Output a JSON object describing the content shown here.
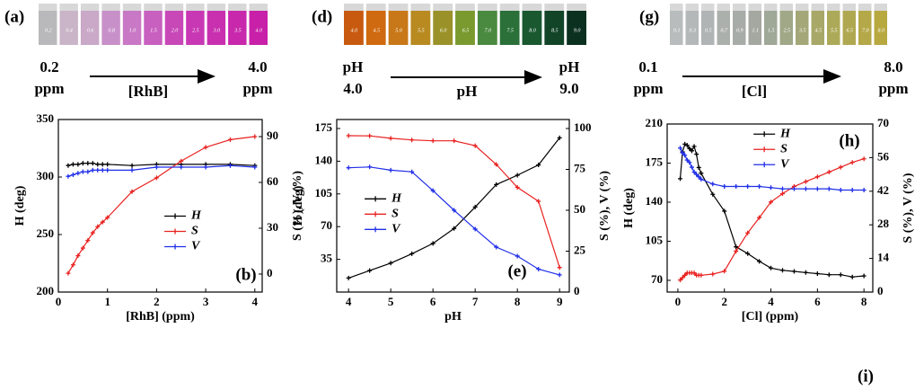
{
  "strips": [
    {
      "panel": "(a)",
      "vial_labels": [
        "0.2",
        "0.4",
        "0.6",
        "0.8",
        "1.0",
        "1.5",
        "2.0",
        "2.5",
        "3.0",
        "3.5",
        "4.0"
      ],
      "vial_colors": [
        "#b9b9bb",
        "#c9b4c8",
        "#c9a8c8",
        "#c890c8",
        "#c878c4",
        "#c860c0",
        "#c848b8",
        "#c838b4",
        "#c830b0",
        "#c828ac",
        "#c820a8"
      ],
      "start": [
        "0.2",
        "ppm"
      ],
      "axis_label": "[RhB]",
      "end": [
        "4.0",
        "ppm"
      ]
    },
    {
      "panel": "(d)",
      "vial_labels": [
        "4.0",
        "4.5",
        "5.0",
        "5.5",
        "6.0",
        "6.5",
        "7.0",
        "7.5",
        "8.0",
        "8.5",
        "9.0"
      ],
      "vial_colors": [
        "#c85a10",
        "#d06a10",
        "#c87818",
        "#b88a20",
        "#9a9228",
        "#7a9a30",
        "#4a8a40",
        "#2a7038",
        "#1a5830",
        "#124428",
        "#0c3020"
      ],
      "start": [
        "pH",
        "4.0"
      ],
      "axis_label": "pH",
      "end": [
        "pH",
        "9.0"
      ]
    },
    {
      "panel": "(g)",
      "vial_labels": [
        "0.1",
        "0.3",
        "0.5",
        "0.7",
        "0.9",
        "1.1",
        "1.5",
        "2.5",
        "3.5",
        "4.5",
        "5.5",
        "6.5",
        "7.0",
        "8.0"
      ],
      "vial_colors": [
        "#b8bcbc",
        "#b4b8b8",
        "#b0b4b4",
        "#acb0ac",
        "#a8aca8",
        "#a4a8a0",
        "#a0a898",
        "#a0a888",
        "#a4a878",
        "#a8a868",
        "#acaa58",
        "#b0a850",
        "#b4a848",
        "#b8a840"
      ],
      "start": [
        "0.1",
        "ppm"
      ],
      "axis_label": "[Cl]",
      "end": [
        "8.0",
        "ppm"
      ]
    }
  ],
  "chart_data": [
    {
      "type": "line",
      "panel": "(b)",
      "xlabel": "[RhB]  (ppm)",
      "ylabel": "H (deg)",
      "y2label": "S (%), V (%)",
      "x": [
        0.2,
        0.3,
        0.4,
        0.5,
        0.6,
        0.7,
        0.8,
        0.9,
        1.0,
        1.5,
        2.0,
        2.5,
        3.0,
        3.5,
        4.0
      ],
      "xlim": [
        0,
        4.15
      ],
      "xticks": [
        0,
        1,
        2,
        3,
        4
      ],
      "ylim": [
        200,
        350
      ],
      "yticks": [
        200,
        250,
        300,
        350
      ],
      "y2lim": [
        -11.8,
        101.2
      ],
      "y2ticks": [
        0,
        30,
        60,
        90
      ],
      "legend_position": "lower-center",
      "series": [
        {
          "name": "H",
          "color": "#000000",
          "values": [
            310,
            311,
            311,
            312,
            312,
            312,
            311,
            311,
            311,
            310,
            311,
            311,
            311,
            311,
            310
          ]
        },
        {
          "name": "S",
          "color": "#e8211f",
          "axis": "y2",
          "values": [
            0.5,
            6,
            12,
            17,
            22,
            27,
            31,
            34,
            37,
            54,
            63,
            74,
            83,
            88,
            90
          ]
        },
        {
          "name": "V",
          "color": "#1f2ee8",
          "axis": "y2",
          "values": [
            64,
            65,
            66,
            67,
            67,
            68,
            68,
            68,
            68,
            68,
            70,
            70,
            70,
            71,
            70
          ]
        }
      ]
    },
    {
      "type": "line",
      "panel": "(e)",
      "xlabel": "pH",
      "ylabel": "H (deg)",
      "y2label": "S (%), V (%)",
      "x": [
        4,
        4.5,
        5,
        5.5,
        6,
        6.5,
        7,
        7.5,
        8,
        8.5,
        9
      ],
      "xlim": [
        3.72,
        9.23
      ],
      "xticks": [
        4,
        5,
        6,
        7,
        8,
        9
      ],
      "ylim": [
        0,
        184.6
      ],
      "yticks": [
        35,
        70,
        105,
        140,
        175
      ],
      "y2lim": [
        0,
        105.5
      ],
      "y2ticks": [
        0,
        25,
        50,
        75,
        100
      ],
      "legend_position": "center-left",
      "series": [
        {
          "name": "H",
          "color": "#000000",
          "values": [
            15,
            23,
            31,
            41,
            52,
            68,
            91,
            115,
            125,
            136,
            165
          ]
        },
        {
          "name": "S",
          "color": "#e8211f",
          "axis": "y2",
          "values": [
            95.6,
            95.5,
            94,
            93,
            92.5,
            92.5,
            89.5,
            78,
            64,
            55.5,
            15
          ]
        },
        {
          "name": "V",
          "color": "#1f2ee8",
          "axis": "y2",
          "values": [
            76,
            76.5,
            74.5,
            73.5,
            62,
            50,
            38.5,
            27.5,
            22,
            14,
            10.5
          ]
        }
      ]
    },
    {
      "type": "line",
      "panel": "(h)",
      "xlabel": "[Cl] (ppm)",
      "ylabel": "H (deg)",
      "y2label": "S (%), V (%)",
      "x": [
        0.1,
        0.2,
        0.3,
        0.4,
        0.5,
        0.6,
        0.7,
        0.8,
        0.9,
        1.0,
        1.5,
        2.0,
        2.5,
        3.0,
        3.5,
        4.0,
        4.5,
        5.0,
        5.5,
        6.0,
        6.5,
        7.0,
        7.5,
        8.0
      ],
      "xlim": [
        -0.46,
        8.38
      ],
      "xticks": [
        0,
        2,
        4,
        6,
        8
      ],
      "ylim": [
        59.5,
        210
      ],
      "yticks": [
        70,
        105,
        140,
        175,
        210
      ],
      "y2lim": [
        0,
        70
      ],
      "y2ticks": [
        0,
        14,
        28,
        42,
        56,
        70
      ],
      "legend_position": "upper-center",
      "series": [
        {
          "name": "H",
          "color": "#000000",
          "values": [
            161,
            185,
            192,
            191,
            188,
            186,
            190,
            183,
            171,
            166,
            147,
            132,
            100,
            94,
            87,
            81,
            79,
            78,
            77,
            76,
            75,
            75,
            73,
            74
          ]
        },
        {
          "name": "S",
          "color": "#e8211f",
          "axis": "y2",
          "values": [
            5,
            6,
            7,
            8,
            8,
            8,
            8,
            7,
            7,
            7,
            7.5,
            8.7,
            17,
            24.6,
            31,
            37.5,
            41,
            44,
            46,
            48,
            50,
            52,
            54,
            55.5
          ]
        },
        {
          "name": "V",
          "color": "#1f2ee8",
          "axis": "y2",
          "values": [
            60,
            58,
            57,
            55,
            54,
            52,
            50,
            49,
            48,
            47,
            45,
            44,
            44,
            44,
            44,
            43.5,
            43,
            43,
            43,
            43,
            43,
            42.5,
            42.5,
            42.5
          ]
        }
      ]
    }
  ],
  "final_panel": "(i)"
}
